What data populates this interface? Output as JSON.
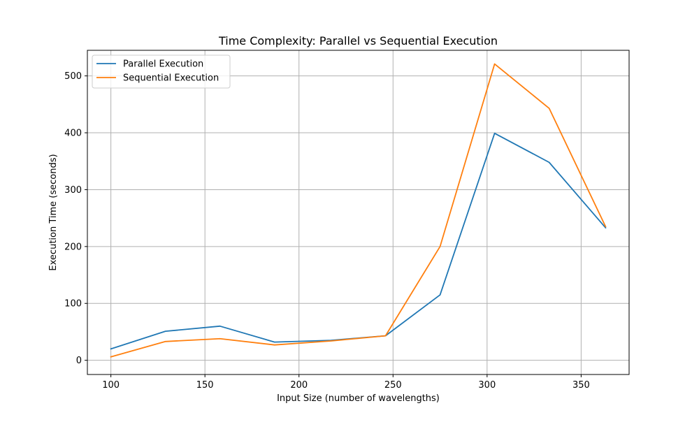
{
  "chart_data": {
    "type": "line",
    "title": "Time Complexity: Parallel vs Sequential Execution",
    "xlabel": "Input Size (number of wavelengths)",
    "ylabel": "Execution Time (seconds)",
    "xlim": [
      87.5,
      375.5
    ],
    "ylim": [
      -25,
      545
    ],
    "xticks": [
      100,
      150,
      200,
      250,
      300,
      350
    ],
    "yticks": [
      0,
      100,
      200,
      300,
      400,
      500
    ],
    "grid": true,
    "legend_position": "top-left",
    "x": [
      100,
      129,
      158,
      187,
      217,
      246,
      275,
      304,
      333,
      363
    ],
    "series": [
      {
        "name": "Parallel Execution",
        "color": "#1f77b4",
        "values": [
          20,
          51,
          60,
          32,
          35,
          43,
          115,
          399,
          348,
          233
        ]
      },
      {
        "name": "Sequential Execution",
        "color": "#ff7f0e",
        "values": [
          6,
          33,
          38,
          27,
          34,
          43,
          200,
          521,
          443,
          235
        ]
      }
    ]
  }
}
